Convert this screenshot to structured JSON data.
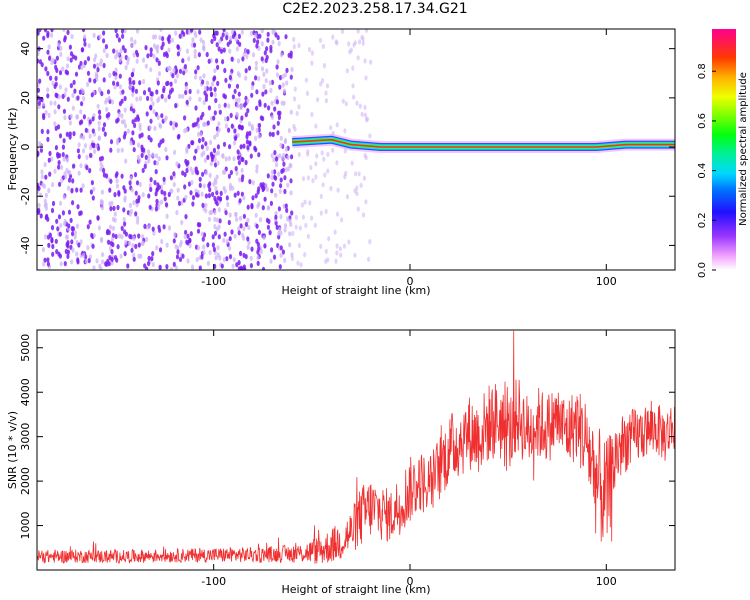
{
  "title": "C2E2.2023.258.17.34.G21",
  "colors": {
    "snr_line": "#f03030",
    "spectrogram_track": "#ff2a2a",
    "noise_main": "#7a1cf0",
    "noise_light": "#cdb0f5",
    "axis": "#000000"
  },
  "chart_data": [
    {
      "type": "heatmap",
      "title": "",
      "xlabel": "Height of straight line (km)",
      "ylabel": "Frequency (Hz)",
      "xlim": [
        -190,
        135
      ],
      "ylim": [
        -50,
        48
      ],
      "x_ticks": [
        -100,
        0,
        100
      ],
      "y_ticks": [
        -40,
        -20,
        0,
        20,
        40
      ],
      "colorbar": {
        "label": "Normalized spectral amplitude",
        "range": [
          0.0,
          0.97
        ],
        "ticks": [
          0.0,
          0.2,
          0.4,
          0.6,
          0.8
        ],
        "tick_labels": [
          "0.0",
          "0.2",
          "0.4",
          "0.6",
          "0.8"
        ],
        "colormap": "gist_ncar_r"
      },
      "signal_track": [
        {
          "x": -60,
          "freq": 2,
          "amplitude": 0.3
        },
        {
          "x": -40,
          "freq": 3,
          "amplitude": 0.35
        },
        {
          "x": -30,
          "freq": 1,
          "amplitude": 0.4
        },
        {
          "x": -15,
          "freq": 0,
          "amplitude": 0.6
        },
        {
          "x": 0,
          "freq": 0,
          "amplitude": 0.75
        },
        {
          "x": 20,
          "freq": 0,
          "amplitude": 0.85
        },
        {
          "x": 40,
          "freq": 0,
          "amplitude": 0.8
        },
        {
          "x": 60,
          "freq": 0,
          "amplitude": 0.85
        },
        {
          "x": 80,
          "freq": 0,
          "amplitude": 0.8
        },
        {
          "x": 95,
          "freq": 0,
          "amplitude": 0.7
        },
        {
          "x": 110,
          "freq": 1,
          "amplitude": 0.9
        },
        {
          "x": 135,
          "freq": 1,
          "amplitude": 0.9
        }
      ],
      "noise_regions": [
        {
          "x_range": [
            -190,
            -60
          ],
          "density": "dense",
          "level": 0.2
        },
        {
          "x_range": [
            -60,
            -20
          ],
          "density": "sparse",
          "level": 0.08
        }
      ]
    },
    {
      "type": "line",
      "title": "",
      "xlabel": "Height of straight line (km)",
      "ylabel": "SNR (10 * v/v)",
      "xlim": [
        -190,
        135
      ],
      "ylim": [
        0,
        5400
      ],
      "x_ticks": [
        -100,
        0,
        100
      ],
      "y_ticks": [
        1000,
        2000,
        3000,
        4000,
        5000
      ],
      "series": [
        {
          "name": "",
          "x": [
            -190,
            -170,
            -150,
            -130,
            -110,
            -90,
            -70,
            -55,
            -45,
            -40,
            -35,
            -30,
            -25,
            -20,
            -15,
            -10,
            -5,
            0,
            5,
            10,
            15,
            20,
            25,
            30,
            35,
            40,
            45,
            50,
            55,
            60,
            65,
            70,
            75,
            80,
            85,
            90,
            95,
            100,
            105,
            110,
            115,
            120,
            125,
            130,
            135
          ],
          "y": [
            300,
            310,
            300,
            320,
            330,
            340,
            350,
            380,
            450,
            550,
            650,
            850,
            1200,
            1400,
            1300,
            1200,
            1500,
            1800,
            2000,
            1900,
            2300,
            2700,
            2900,
            3100,
            3000,
            3300,
            3400,
            3000,
            3500,
            3100,
            3300,
            3200,
            3400,
            3100,
            3300,
            2900,
            2000,
            1600,
            2600,
            2900,
            3000,
            3100,
            3200,
            3000,
            3300
          ],
          "noise_amplitude": [
            150,
            150,
            150,
            150,
            160,
            170,
            180,
            220,
            350,
            400,
            450,
            500,
            700,
            700,
            650,
            600,
            700,
            750,
            700,
            700,
            750,
            800,
            850,
            850,
            850,
            900,
            900,
            900,
            900,
            850,
            850,
            800,
            800,
            800,
            850,
            1000,
            1300,
            1300,
            800,
            700,
            650,
            600,
            600,
            600,
            600
          ]
        }
      ],
      "grid": false
    }
  ]
}
